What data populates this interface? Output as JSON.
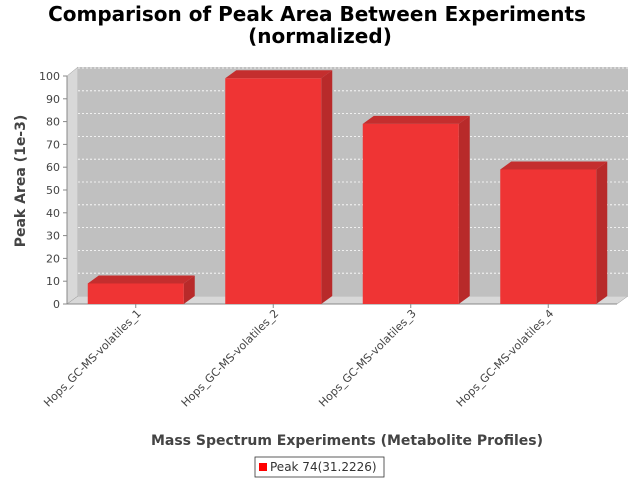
{
  "chart_data": {
    "type": "bar",
    "title_lines": [
      "Comparison of Peak Area Between Experiments",
      "(normalized)"
    ],
    "xlabel": "Mass Spectrum Experiments (Metabolite Profiles)",
    "ylabel": "Peak Area (1e-3)",
    "categories": [
      "Hops_GC-MS-volatiles_1",
      "Hops_GC-MS-volatiles_2",
      "Hops_GC-MS-volatiles_3",
      "Hops_GC-MS-volatiles_4"
    ],
    "series": [
      {
        "name": "Peak 74(31.2226)",
        "values": [
          9,
          99,
          79,
          59
        ],
        "color": "#ff0000"
      }
    ],
    "ylim": [
      0,
      100
    ],
    "yticks": [
      0,
      10,
      20,
      30,
      40,
      50,
      60,
      70,
      80,
      90,
      100
    ],
    "grid": true,
    "legend_position": "bottom-center",
    "plot_background": "#c0c0c0",
    "style": "3d"
  }
}
